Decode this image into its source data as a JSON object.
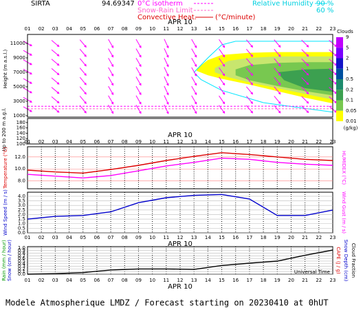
{
  "header": {
    "station": "SIRTA",
    "coord": "94.69347",
    "isotherm": "0°C isotherm",
    "snow_rain": "Snow-Rain Limit",
    "convective": "Convective Heat.",
    "convective_unit": "(°C/minute)",
    "rh": "Relative Humidity",
    "rh_high": "90 %",
    "rh_low": "60 %"
  },
  "footer": "Modele Atmospherique LMDZ / Forecast starting on 20230410 at 0hUT",
  "time_axis": {
    "xlim": [
      1,
      23
    ],
    "date": "APR 10",
    "xticks": [
      {
        "value": 1,
        "label": "01"
      },
      {
        "value": 2,
        "label": "02"
      },
      {
        "value": 3,
        "label": "03"
      },
      {
        "value": 4,
        "label": "04"
      },
      {
        "value": 5,
        "label": "05"
      },
      {
        "value": 6,
        "label": "06"
      },
      {
        "value": 7,
        "label": "07"
      },
      {
        "value": 8,
        "label": "08"
      },
      {
        "value": 9,
        "label": "09"
      },
      {
        "value": 10,
        "label": "10"
      },
      {
        "value": 11,
        "label": "11"
      },
      {
        "value": 12,
        "label": "12"
      },
      {
        "value": 13,
        "label": "13"
      },
      {
        "value": 14,
        "label": "14"
      },
      {
        "value": 15,
        "label": "15"
      },
      {
        "value": 16,
        "label": "16"
      },
      {
        "value": 17,
        "label": "17"
      },
      {
        "value": 18,
        "label": "18"
      },
      {
        "value": 19,
        "label": "19"
      },
      {
        "value": 20,
        "label": "20"
      },
      {
        "value": 21,
        "label": "21"
      },
      {
        "value": 22,
        "label": "22"
      },
      {
        "value": 23,
        "label": "23"
      }
    ]
  },
  "chart_data": [
    {
      "type": "contour",
      "ylabel": "Height (m a.s.l.)",
      "low_label": "Up to 200 m a.g.l.",
      "ylim": [
        800,
        12240
      ],
      "yticks": [
        1000,
        3000,
        5000,
        7000,
        9000,
        11000
      ],
      "low_ylim": [
        100,
        195
      ],
      "low_yticks": [
        100,
        120,
        140,
        160,
        180
      ],
      "x": [
        1,
        3,
        5,
        7,
        9,
        11,
        13,
        15,
        17,
        19,
        21,
        23
      ],
      "wind_direction": [
        120,
        130,
        140,
        150,
        150,
        155,
        150,
        145,
        140,
        140,
        135,
        130
      ],
      "isotherm_0c": [
        2300,
        2300,
        2300,
        2300,
        2300,
        2300,
        2300,
        2300,
        2320,
        2320,
        2300,
        2300
      ],
      "snow_rain_limit": [
        1950,
        1950,
        1950,
        1950,
        1950,
        1950,
        1950,
        1950,
        1950,
        1950,
        1950,
        1950
      ],
      "clouds": [
        {
          "color": "#ffff00",
          "x": [
            13.2,
            14,
            15,
            17,
            19,
            21,
            23,
            23,
            21,
            19,
            17,
            15,
            14,
            13.2
          ],
          "y": [
            7500,
            8700,
            9400,
            9700,
            9800,
            9800,
            9800,
            2700,
            3500,
            4400,
            5300,
            6100,
            6600,
            7200
          ]
        },
        {
          "color": "#c8e66e",
          "x": [
            14.5,
            15.5,
            17,
            19,
            21,
            23,
            23,
            21,
            19,
            17,
            15.5,
            14.5
          ],
          "y": [
            7600,
            8600,
            9000,
            9200,
            9200,
            9200,
            3200,
            4000,
            4800,
            5600,
            6300,
            7000
          ]
        },
        {
          "color": "#78c850",
          "x": [
            16,
            17,
            19,
            21,
            23,
            23,
            21,
            19,
            17,
            16
          ],
          "y": [
            7400,
            8000,
            8300,
            8400,
            8400,
            3800,
            4400,
            5100,
            5900,
            6600
          ]
        },
        {
          "color": "#3ca050",
          "x": [
            19,
            21,
            23,
            23,
            21,
            19.5
          ],
          "y": [
            7000,
            7400,
            7500,
            4300,
            4800,
            5900
          ]
        }
      ],
      "rh_contours": [
        {
          "color": "#00e5ff",
          "x": [
            13,
            14,
            15,
            16,
            23,
            23,
            21,
            18,
            15,
            13.5,
            13
          ],
          "y": [
            7000,
            9000,
            10800,
            11300,
            11300,
            1500,
            2000,
            2800,
            4500,
            6000,
            7000
          ]
        }
      ],
      "colorbar": {
        "title": "Clouds",
        "unit": "(g/kg)",
        "ticks": [
          9,
          5,
          2,
          1,
          0.5,
          0.2,
          0.1,
          0.05,
          0.01
        ],
        "colors": [
          "#c000ff",
          "#7a00ff",
          "#1414c8",
          "#0050a0",
          "#1e8c6e",
          "#3ca050",
          "#78c850",
          "#ffff00"
        ]
      }
    },
    {
      "type": "line",
      "ylim": [
        6.7,
        13.7
      ],
      "yticks": [
        {
          "value": 8,
          "label": "8.0"
        },
        {
          "value": 10,
          "label": "10.0"
        },
        {
          "value": 12,
          "label": "12.0"
        }
      ],
      "x": [
        1,
        3,
        5,
        7,
        9,
        11,
        13,
        15,
        17,
        19,
        21,
        23
      ],
      "series": [
        {
          "name": "Temperature (°C)",
          "color": "#dd0000",
          "values": [
            9.8,
            9.5,
            9.3,
            9.9,
            10.6,
            11.4,
            12.1,
            12.7,
            12.4,
            12.0,
            11.6,
            11.4
          ]
        },
        {
          "name": "HUMIDEX (°C)",
          "color": "#ff00ff",
          "values": [
            9.1,
            8.8,
            8.5,
            8.9,
            9.7,
            10.5,
            11.1,
            11.8,
            11.6,
            11.1,
            10.8,
            10.6
          ]
        }
      ]
    },
    {
      "type": "line",
      "ylim": [
        0,
        4.45
      ],
      "y2label": "Wind Gust (m / s)",
      "yticks": [
        {
          "value": 0,
          "label": "0.0"
        },
        {
          "value": 0.5,
          "label": "0.5"
        },
        {
          "value": 1,
          "label": "1.0"
        },
        {
          "value": 1.5,
          "label": "1.5"
        },
        {
          "value": 2,
          "label": "2.0"
        },
        {
          "value": 2.5,
          "label": "2.5"
        },
        {
          "value": 3,
          "label": "3.0"
        },
        {
          "value": 3.5,
          "label": "3.5"
        },
        {
          "value": 4,
          "label": "4.0"
        }
      ],
      "x": [
        1,
        3,
        5,
        7,
        9,
        11,
        13,
        15,
        17,
        19,
        21,
        23
      ],
      "series": [
        {
          "name": "Wind Speed (m / s)",
          "color": "#0000cc",
          "values": [
            1.5,
            1.8,
            1.9,
            2.3,
            3.3,
            3.85,
            4.1,
            4.2,
            3.7,
            1.9,
            1.9,
            2.5
          ]
        }
      ]
    },
    {
      "type": "line",
      "ylim": [
        0,
        1.05
      ],
      "xlabel": "Universal Time",
      "rain_label": "Rain (mm / hour)",
      "snow_label": "Snow (cm / hour)",
      "cape_label": "CAPE (J / g)",
      "snow_depth_label": "Snow Depth (cm)",
      "yticks": [
        {
          "value": 0,
          "label": "0.0"
        },
        {
          "value": 0.1,
          "label": "0.1"
        },
        {
          "value": 0.2,
          "label": "0.2"
        },
        {
          "value": 0.3,
          "label": "0.3"
        },
        {
          "value": 0.4,
          "label": "0.4"
        },
        {
          "value": 0.5,
          "label": "0.5"
        },
        {
          "value": 0.6,
          "label": "0.6"
        },
        {
          "value": 0.7,
          "label": "0.7"
        },
        {
          "value": 0.8,
          "label": "0.8"
        },
        {
          "value": 0.9,
          "label": "0.9"
        },
        {
          "value": 1,
          "label": "1.0"
        }
      ],
      "x": [
        1,
        3,
        5,
        7,
        9,
        11,
        13,
        15,
        17,
        19,
        21,
        23
      ],
      "series": [
        {
          "name": "Cloud Fraction",
          "color": "#000000",
          "values": [
            0.0,
            0.02,
            0.06,
            0.16,
            0.2,
            0.2,
            0.18,
            0.33,
            0.42,
            0.5,
            0.72,
            0.92
          ]
        }
      ]
    }
  ]
}
